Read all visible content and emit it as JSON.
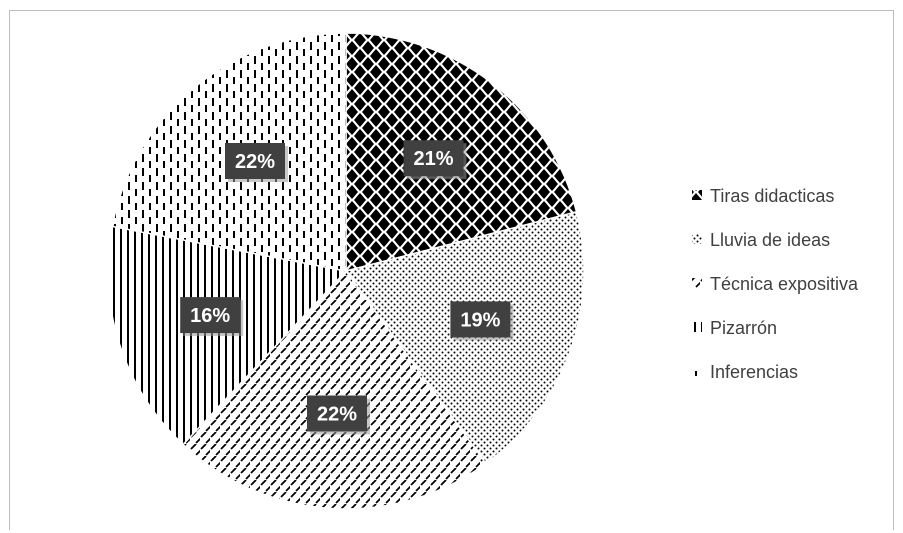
{
  "chart_data": {
    "type": "pie",
    "title": "",
    "legend_position": "right",
    "series": [
      {
        "name": "Tiras didacticas",
        "value": 21,
        "label": "21%",
        "pattern": "diamond-checker"
      },
      {
        "name": "Lluvia de ideas",
        "value": 19,
        "label": "19%",
        "pattern": "dots"
      },
      {
        "name": "Técnica expositiva",
        "value": 22,
        "label": "22%",
        "pattern": "diagonal-dashes"
      },
      {
        "name": "Pizarrón",
        "value": 16,
        "label": "16%",
        "pattern": "vertical-lines"
      },
      {
        "name": "Inferencias",
        "value": 22,
        "label": "22%",
        "pattern": "dashed-vertical-lines"
      }
    ],
    "colors": {
      "pattern": "#000000",
      "background": "#ffffff",
      "label_box": "#404040",
      "legend_text": "#404040",
      "border": "#bdbdbd"
    }
  }
}
